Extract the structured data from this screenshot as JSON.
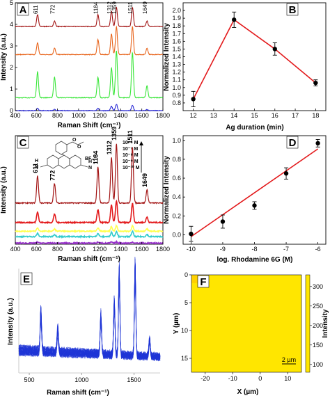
{
  "colors": {
    "dark_red": "#a31515",
    "red": "#e31a1c",
    "orange": "#e8641b",
    "green": "#39e639",
    "blue": "#2b2bd6",
    "yellow": "#ffff4d",
    "cyan": "#33cccc",
    "purple": "#9933cc",
    "spectrum_blue": "#1f35d6",
    "map_yellow": "#ffe600",
    "fit_red": "#e31a1c"
  },
  "panel_labels": [
    "A",
    "B",
    "C",
    "D",
    "E",
    "F"
  ],
  "chart_data": [
    {
      "panel": "A",
      "type": "line",
      "xlabel": "Raman Shift (cm⁻¹)",
      "ylabel": "Intensity (a.u.)",
      "xlim": [
        400,
        1800
      ],
      "ylim": [
        0,
        5
      ],
      "xticks": [
        "400",
        "600",
        "800",
        "1000",
        "1200",
        "1400",
        "1600",
        "1800"
      ],
      "yticks": [
        "0",
        "1",
        "2",
        "3",
        "4",
        "5"
      ],
      "peak_labels": [
        "611",
        "772",
        "1184",
        "1312",
        "1359",
        "1511",
        "1649"
      ],
      "peak_positions": [
        611,
        772,
        1184,
        1312,
        1359,
        1511,
        1649
      ],
      "series": [
        {
          "color": "#a31515",
          "baseline": 3.9,
          "peak_heights": [
            0.55,
            0.25,
            0.55,
            0.7,
            0.9,
            0.9,
            0.25
          ]
        },
        {
          "color": "#e8641b",
          "baseline": 2.6,
          "peak_heights": [
            0.55,
            0.3,
            0.7,
            0.95,
            1.3,
            1.3,
            0.3
          ]
        },
        {
          "color": "#39e639",
          "baseline": 0.6,
          "peak_heights": [
            1.2,
            0.95,
            0.95,
            1.4,
            2.2,
            2.1,
            0.55
          ]
        },
        {
          "color": "#2b2bd6",
          "baseline": 0.0,
          "peak_heights": [
            0.1,
            0.05,
            0.1,
            0.2,
            0.3,
            0.25,
            0.05
          ]
        }
      ]
    },
    {
      "panel": "B",
      "type": "scatter",
      "xlabel": "Ag duration (min)",
      "ylabel": "Normalized Intensity",
      "xlim": [
        11.5,
        18.5
      ],
      "ylim": [
        0.7,
        2.1
      ],
      "xticks": [
        "12",
        "13",
        "14",
        "15",
        "16",
        "17",
        "18"
      ],
      "yticks": [
        "0.8",
        "0.9",
        "1.0",
        "1.1",
        "1.2",
        "1.3",
        "1.4",
        "1.5",
        "1.6",
        "1.7",
        "1.8",
        "1.9",
        "2.0"
      ],
      "x": [
        12,
        14,
        16,
        18
      ],
      "y": [
        0.85,
        1.88,
        1.5,
        1.06
      ],
      "yerr": [
        0.1,
        0.1,
        0.08,
        0.04
      ]
    },
    {
      "panel": "C",
      "type": "line",
      "xlabel": "Raman shift (cm⁻¹)",
      "ylabel": "Intensity (a.u.)",
      "xlim": [
        400,
        1800
      ],
      "ylim": [
        0,
        1
      ],
      "xticks": [
        "400",
        "600",
        "800",
        "1000",
        "1200",
        "1400",
        "1600",
        "1800"
      ],
      "peak_labels": [
        "611",
        "772",
        "1184",
        "1312",
        "1359",
        "1511",
        "1649"
      ],
      "peak_positions": [
        611,
        772,
        1184,
        1312,
        1359,
        1511,
        1649
      ],
      "legend": [
        "10⁻⁶ M",
        "10⁻⁷ M",
        "10⁻⁸ M",
        "10⁻⁹ M",
        "10⁻¹⁰ M"
      ],
      "structure_labels": [
        "O",
        "O",
        "BF₄⁻",
        "N",
        "N",
        "H",
        "H"
      ],
      "series": [
        {
          "color": "#a31515",
          "baseline": 0.38,
          "peak_heights": [
            0.25,
            0.18,
            0.33,
            0.42,
            0.55,
            0.52,
            0.12
          ]
        },
        {
          "color": "#e31a1c",
          "baseline": 0.2,
          "peak_heights": [
            0.1,
            0.08,
            0.12,
            0.16,
            0.2,
            0.18,
            0.05
          ]
        },
        {
          "color": "#ffff4d",
          "baseline": 0.12,
          "peak_heights": [
            0.03,
            0.02,
            0.03,
            0.04,
            0.05,
            0.05,
            0.02
          ]
        },
        {
          "color": "#33cccc",
          "baseline": 0.07,
          "peak_heights": [
            0.03,
            0.02,
            0.03,
            0.04,
            0.05,
            0.05,
            0.02
          ]
        },
        {
          "color": "#9933cc",
          "baseline": 0.01,
          "peak_heights": [
            0.01,
            0.0,
            0.01,
            0.01,
            0.01,
            0.01,
            0.0
          ]
        }
      ]
    },
    {
      "panel": "D",
      "type": "scatter",
      "xlabel": "log. Rhodamine 6G (M)",
      "ylabel": "Normalized Intensity",
      "xlim": [
        -10.25,
        -5.75
      ],
      "ylim": [
        -0.1,
        1.05
      ],
      "xticks": [
        "-10",
        "-9",
        "-8",
        "-7",
        "-6"
      ],
      "yticks": [
        "0.0",
        "0.2",
        "0.4",
        "0.6",
        "0.8",
        "1.0"
      ],
      "x": [
        -10,
        -9,
        -8,
        -7,
        -6
      ],
      "y": [
        0.01,
        0.14,
        0.31,
        0.65,
        0.97
      ],
      "yerr": [
        0.08,
        0.07,
        0.04,
        0.06,
        0.04
      ],
      "fit": {
        "x": [
          -10,
          -6
        ],
        "y": [
          -0.02,
          0.91
        ]
      }
    },
    {
      "panel": "E",
      "type": "line",
      "xlabel": "Raman shift (cm⁻¹)",
      "ylabel": "Intensity (a.u.)",
      "xlim": [
        400,
        1750
      ],
      "xticks": [
        "500",
        "1000",
        "1500"
      ],
      "peak_positions": [
        611,
        772,
        1184,
        1312,
        1359,
        1511,
        1649
      ],
      "num_spectra": 25
    },
    {
      "panel": "F",
      "type": "heatmap",
      "xlabel": "X (µm)",
      "ylabel": "Y (µm)",
      "xlim": [
        -25,
        15
      ],
      "ylim": [
        17.5,
        0
      ],
      "xticks": [
        "-20",
        "-10",
        "0",
        "10"
      ],
      "yticks": [
        "0",
        "5",
        "10",
        "15"
      ],
      "colorbar_label": "Intensity",
      "colorbar_ticks": [
        "100",
        "150",
        "200",
        "250",
        "300"
      ],
      "scale_bar": "2 µm"
    }
  ]
}
